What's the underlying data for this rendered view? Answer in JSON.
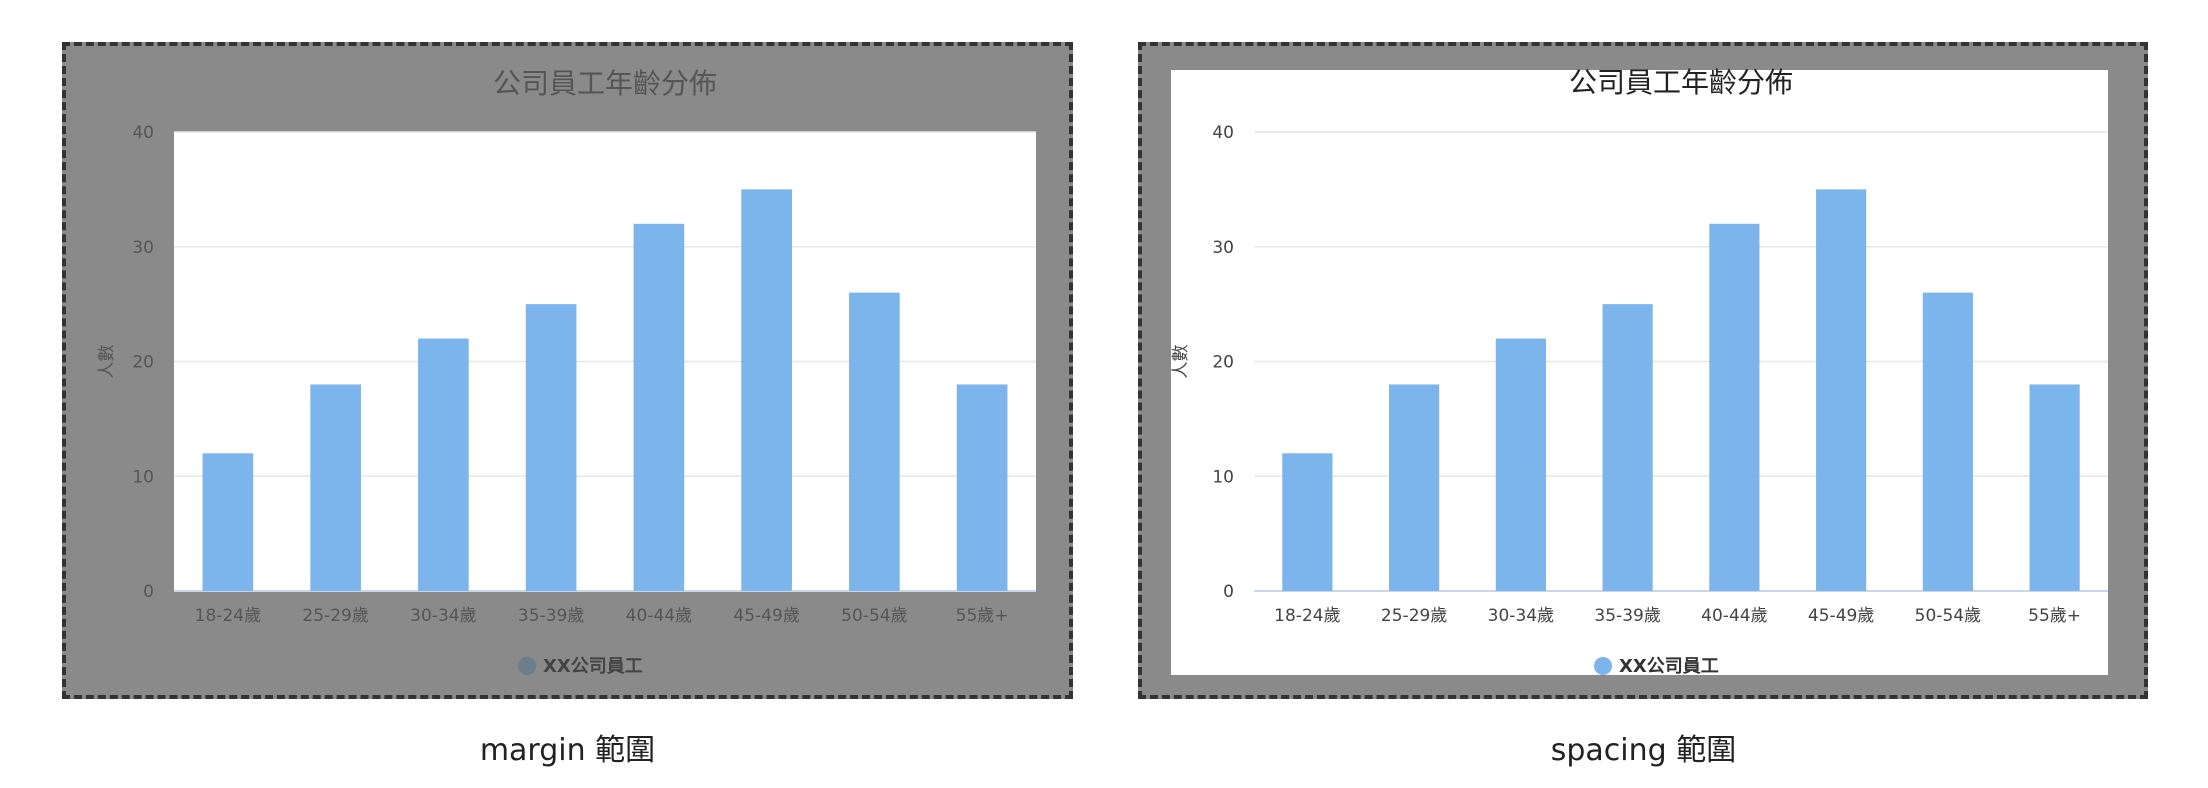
{
  "captions": {
    "left": "margin 範圍",
    "right": "spacing 範圍"
  },
  "colors": {
    "bar": "#7cb5ec",
    "panel": "#8a8a8a",
    "grid": "#e6e6e6"
  },
  "chart_data": [
    {
      "type": "bar",
      "title": "公司員工年齡分佈",
      "ylabel": "人數",
      "xlabel": "",
      "categories": [
        "18-24歲",
        "25-29歲",
        "30-34歲",
        "35-39歲",
        "40-44歲",
        "45-49歲",
        "50-54歲",
        "55歲+"
      ],
      "series": [
        {
          "name": "XX公司員工",
          "values": [
            12,
            18,
            22,
            25,
            32,
            35,
            26,
            18
          ]
        }
      ],
      "ylim": [
        0,
        40
      ],
      "yticks": [
        "0",
        "10",
        "20",
        "30",
        "40"
      ],
      "grid": true,
      "legend": "bottom-center"
    },
    {
      "type": "bar",
      "title": "公司員工年齡分佈",
      "ylabel": "人數",
      "xlabel": "",
      "categories": [
        "18-24歲",
        "25-29歲",
        "30-34歲",
        "35-39歲",
        "40-44歲",
        "45-49歲",
        "50-54歲",
        "55歲+"
      ],
      "series": [
        {
          "name": "XX公司員工",
          "values": [
            12,
            18,
            22,
            25,
            32,
            35,
            26,
            18
          ]
        }
      ],
      "ylim": [
        0,
        40
      ],
      "yticks": [
        "0",
        "10",
        "20",
        "30",
        "40"
      ],
      "grid": true,
      "legend": "bottom-center"
    }
  ]
}
